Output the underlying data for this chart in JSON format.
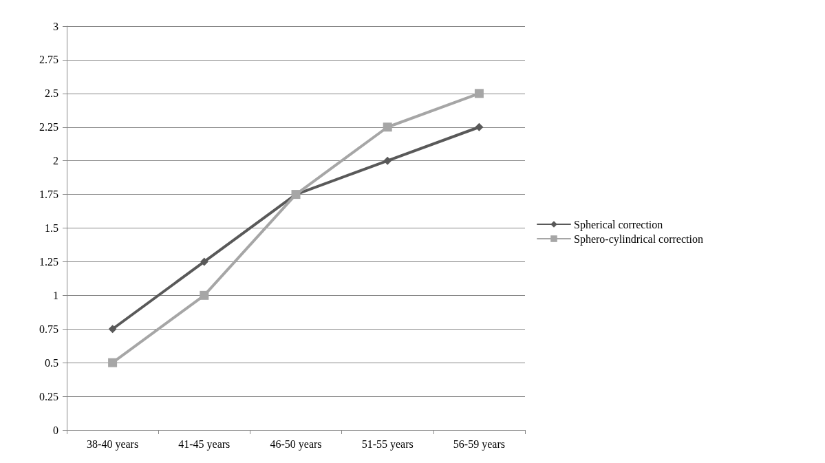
{
  "chart_data": {
    "type": "line",
    "categories": [
      "38-40 years",
      "41-45 years",
      "46-50 years",
      "51-55 years",
      "56-59 years"
    ],
    "series": [
      {
        "name": "Spherical correction",
        "color": "#595959",
        "marker": "diamond",
        "values": [
          0.75,
          1.25,
          1.75,
          2,
          2.25
        ]
      },
      {
        "name": "Sphero-cylindrical correction",
        "color": "#a6a6a6",
        "marker": "square",
        "values": [
          0.5,
          1,
          1.75,
          2.25,
          2.5
        ]
      }
    ],
    "ylim": [
      0,
      3
    ],
    "yticks": [
      0,
      0.25,
      0.5,
      0.75,
      1,
      1.25,
      1.5,
      1.75,
      2,
      2.25,
      2.5,
      2.75,
      3
    ],
    "grid": "y",
    "legend": "right",
    "line_style": "solid"
  }
}
